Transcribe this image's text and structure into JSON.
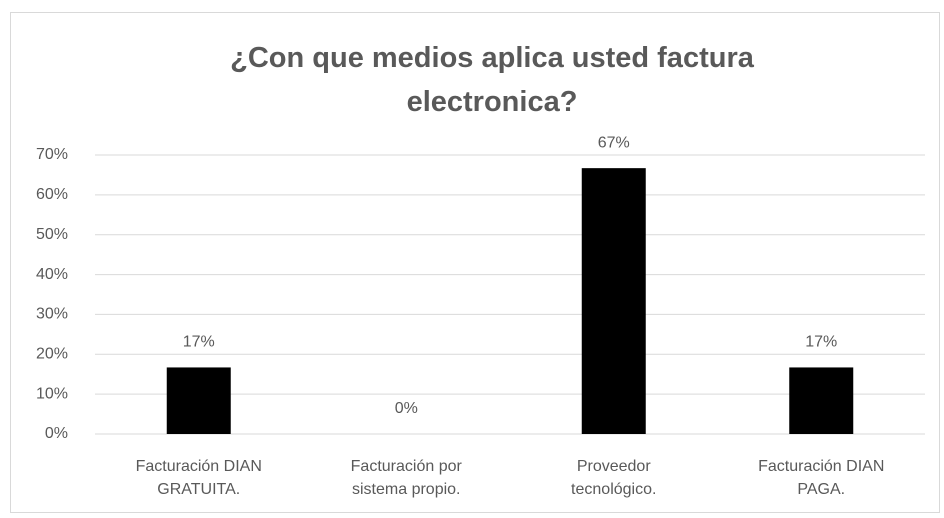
{
  "chart_data": {
    "type": "bar",
    "title": "¿Con que medios aplica usted factura electronica?",
    "categories": [
      [
        "Facturación DIAN",
        "GRATUITA."
      ],
      [
        "Facturación por",
        "sistema propio."
      ],
      [
        "Proveedor",
        "tecnológico."
      ],
      [
        "Facturación DIAN",
        "PAGA."
      ]
    ],
    "values": [
      16.7,
      0,
      66.7,
      16.7
    ],
    "value_labels": [
      "17%",
      "0%",
      "67%",
      "17%"
    ],
    "color": "#000000",
    "ylim": [
      0,
      70
    ],
    "yticks": [
      {
        "value": 0,
        "label": "0%"
      },
      {
        "value": 10,
        "label": "10%"
      },
      {
        "value": 20,
        "label": "20%"
      },
      {
        "value": 30,
        "label": "30%"
      },
      {
        "value": 40,
        "label": "40%"
      },
      {
        "value": 50,
        "label": "50%"
      },
      {
        "value": 60,
        "label": "60%"
      },
      {
        "value": 70,
        "label": "70%"
      }
    ],
    "grid": true
  }
}
